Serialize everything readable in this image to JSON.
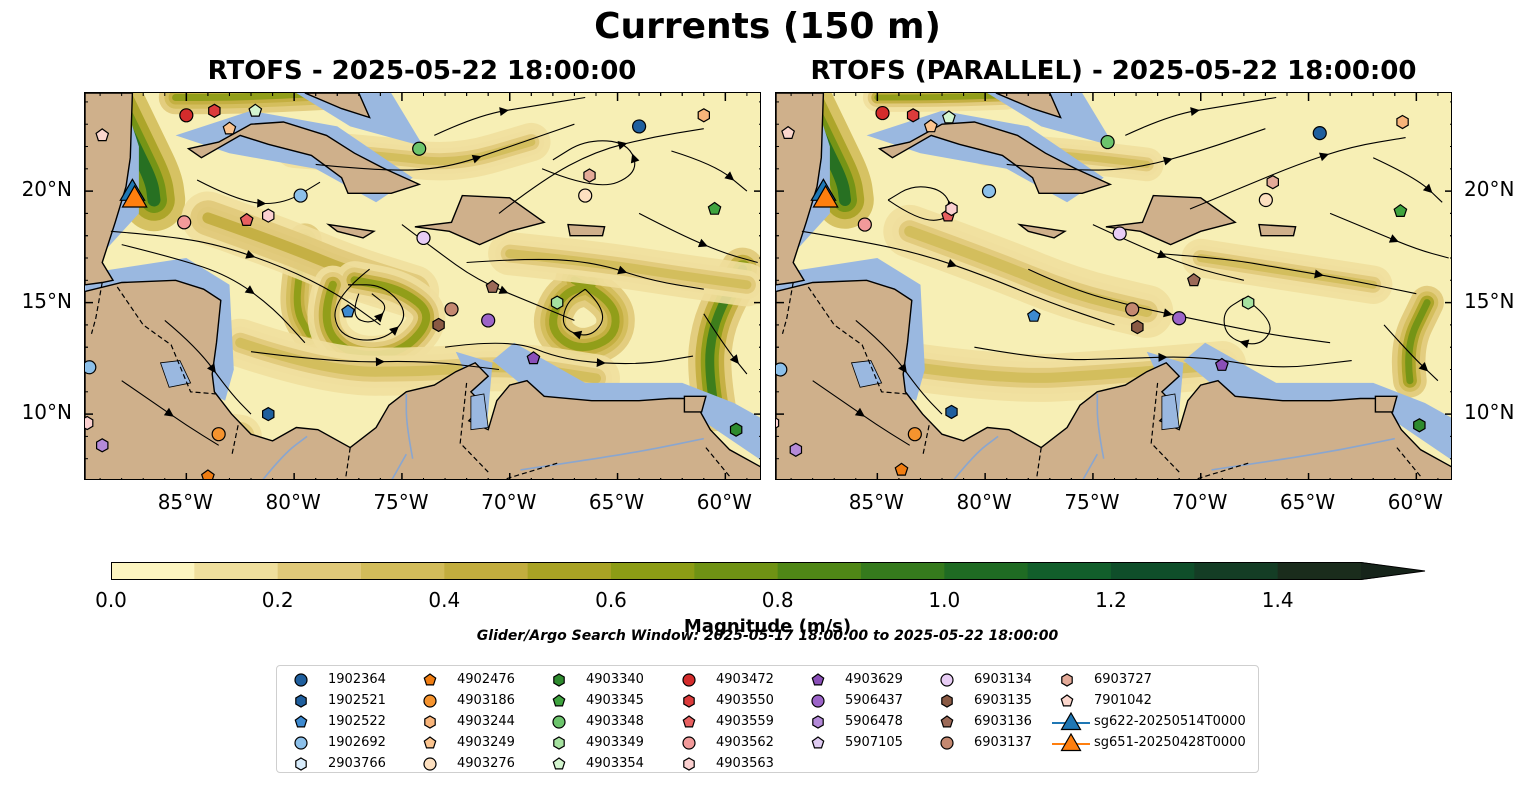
{
  "title": "Currents (150 m)",
  "panels": [
    {
      "title": "RTOFS - 2025-05-22 18:00:00"
    },
    {
      "title": "RTOFS (PARALLEL) - 2025-05-22 18:00:00"
    }
  ],
  "axes": {
    "lon_ticks": [
      "85°W",
      "80°W",
      "75°W",
      "70°W",
      "65°W",
      "60°W"
    ],
    "lon_values": [
      -85,
      -80,
      -75,
      -70,
      -65,
      -60
    ],
    "lat_ticks": [
      "20°N",
      "15°N",
      "10°N"
    ],
    "lat_values": [
      20,
      15,
      10
    ],
    "lon_range": [
      -89.7,
      -58.3
    ],
    "lat_range": [
      7.0,
      24.4
    ]
  },
  "colorbar": {
    "label": "Magnitude (m/s)",
    "ticks": [
      "0.0",
      "0.2",
      "0.4",
      "0.6",
      "0.8",
      "1.0",
      "1.2",
      "1.4"
    ],
    "range": [
      0,
      1.5
    ],
    "step": 0.1,
    "extend": "max",
    "colors": [
      "#fcf5c0",
      "#efdf9d",
      "#e0c979",
      "#d2bc5a",
      "#c2ad3e",
      "#a8a224",
      "#8c9c15",
      "#6f9214",
      "#4f8716",
      "#357a1d",
      "#1f6b23",
      "#125e2b",
      "#0f4e2a",
      "#143d25",
      "#1a2c1c",
      "#16241a"
    ]
  },
  "search_window": "Glider/Argo Search Window: 2025-05-17 18:00:00 to 2025-05-22 18:00:00",
  "colors": {
    "ocean": "#9ab8e0",
    "land": "#cfb08b",
    "ocean_field": "#f7efb5"
  },
  "legend": {
    "columns": [
      [
        {
          "label": "1902364",
          "shape": "circle",
          "color": "#1f5f9e"
        },
        {
          "label": "1902521",
          "shape": "hexagon",
          "color": "#1f5f9e"
        },
        {
          "label": "1902522",
          "shape": "pentagon",
          "color": "#3d8ad0"
        },
        {
          "label": "1902692",
          "shape": "circle",
          "color": "#8cc0ea"
        },
        {
          "label": "2903766",
          "shape": "hexagon",
          "color": "#d8ecfb"
        }
      ],
      [
        {
          "label": "4902476",
          "shape": "pentagon",
          "color": "#f07d12"
        },
        {
          "label": "4903186",
          "shape": "circle",
          "color": "#f5932e"
        },
        {
          "label": "4903244",
          "shape": "hexagon",
          "color": "#f8b47a"
        },
        {
          "label": "4903249",
          "shape": "pentagon",
          "color": "#fbc48f"
        },
        {
          "label": "4903276",
          "shape": "circle",
          "color": "#fde0c0"
        }
      ],
      [
        {
          "label": "4903340",
          "shape": "hexagon",
          "color": "#2e8b2e"
        },
        {
          "label": "4903345",
          "shape": "pentagon",
          "color": "#3fa43f"
        },
        {
          "label": "4903348",
          "shape": "circle",
          "color": "#6cc46c"
        },
        {
          "label": "4903349",
          "shape": "hexagon",
          "color": "#a6e2a0"
        },
        {
          "label": "4903354",
          "shape": "pentagon",
          "color": "#d4f5cf"
        }
      ],
      [
        {
          "label": "4903472",
          "shape": "circle",
          "color": "#d42c2c"
        },
        {
          "label": "4903550",
          "shape": "hexagon",
          "color": "#dc3b3b"
        },
        {
          "label": "4903559",
          "shape": "pentagon",
          "color": "#e86060"
        },
        {
          "label": "4903562",
          "shape": "circle",
          "color": "#f29a9a"
        },
        {
          "label": "4903563",
          "shape": "hexagon",
          "color": "#fbd0d0"
        }
      ],
      [
        {
          "label": "4903629",
          "shape": "pentagon",
          "color": "#8a4fb8"
        },
        {
          "label": "5906437",
          "shape": "circle",
          "color": "#9c64c8"
        },
        {
          "label": "5906478",
          "shape": "hexagon",
          "color": "#b48ad8"
        },
        {
          "label": "5907105",
          "shape": "pentagon",
          "color": "#e0ccf2"
        }
      ],
      [
        {
          "label": "6903134",
          "shape": "circle",
          "color": "#e8cdf5"
        },
        {
          "label": "6903135",
          "shape": "hexagon",
          "color": "#8a5a44"
        },
        {
          "label": "6903136",
          "shape": "pentagon",
          "color": "#9c6a58"
        },
        {
          "label": "6903137",
          "shape": "circle",
          "color": "#c48870"
        }
      ],
      [
        {
          "label": "6903727",
          "shape": "hexagon",
          "color": "#e4aa98"
        },
        {
          "label": "7901042",
          "shape": "pentagon",
          "color": "#fbd6cc"
        },
        {
          "label": "sg622-20250514T0000",
          "shape": "triangle",
          "color": "#1f77b4"
        },
        {
          "label": "sg651-20250428T0000",
          "shape": "triangle",
          "color": "#ff7f0e"
        }
      ]
    ]
  },
  "floats_left": [
    {
      "id": "1902364",
      "lon": -64.0,
      "lat": 22.9
    },
    {
      "id": "1902521",
      "lon": -81.2,
      "lat": 10.0
    },
    {
      "id": "1902522",
      "lon": -77.5,
      "lat": 14.6
    },
    {
      "id": "1902692",
      "lon": -79.7,
      "lat": 19.8
    },
    {
      "id": "1902692",
      "lon": -89.5,
      "lat": 12.1
    },
    {
      "id": "4902476",
      "lon": -84.0,
      "lat": 7.2
    },
    {
      "id": "4903186",
      "lon": -83.5,
      "lat": 9.1
    },
    {
      "id": "4903244",
      "lon": -61.0,
      "lat": 23.4
    },
    {
      "id": "4903249",
      "lon": -83.0,
      "lat": 22.8
    },
    {
      "id": "4903276",
      "lon": -66.5,
      "lat": 19.8
    },
    {
      "id": "4903340",
      "lon": -59.5,
      "lat": 9.3
    },
    {
      "id": "4903345",
      "lon": -60.5,
      "lat": 19.2
    },
    {
      "id": "4903348",
      "lon": -74.2,
      "lat": 21.9
    },
    {
      "id": "4903349",
      "lon": -67.8,
      "lat": 15.0
    },
    {
      "id": "4903354",
      "lon": -81.8,
      "lat": 23.6
    },
    {
      "id": "4903472",
      "lon": -85.0,
      "lat": 23.4
    },
    {
      "id": "4903550",
      "lon": -83.7,
      "lat": 23.6
    },
    {
      "id": "4903559",
      "lon": -82.2,
      "lat": 18.7
    },
    {
      "id": "4903562",
      "lon": -85.1,
      "lat": 18.6
    },
    {
      "id": "4903563",
      "lon": -81.2,
      "lat": 18.9
    },
    {
      "id": "4903563",
      "lon": -89.6,
      "lat": 9.6
    },
    {
      "id": "4903629",
      "lon": -68.9,
      "lat": 12.5
    },
    {
      "id": "5906437",
      "lon": -71.0,
      "lat": 14.2
    },
    {
      "id": "5906478",
      "lon": -88.9,
      "lat": 8.6
    },
    {
      "id": "6903134",
      "lon": -74.0,
      "lat": 17.9
    },
    {
      "id": "6903135",
      "lon": -73.3,
      "lat": 14.0
    },
    {
      "id": "6903136",
      "lon": -70.8,
      "lat": 15.7
    },
    {
      "id": "6903137",
      "lon": -72.7,
      "lat": 14.7
    },
    {
      "id": "6903727",
      "lon": -66.3,
      "lat": 20.7
    },
    {
      "id": "7901042",
      "lon": -88.9,
      "lat": 22.5
    }
  ],
  "gliders": [
    {
      "id": "sg622-20250514T0000",
      "lon": -87.5,
      "lat": 19.9,
      "color": "#1f77b4"
    },
    {
      "id": "sg651-20250428T0000",
      "lon": -87.4,
      "lat": 19.6,
      "color": "#ff7f0e"
    }
  ]
}
